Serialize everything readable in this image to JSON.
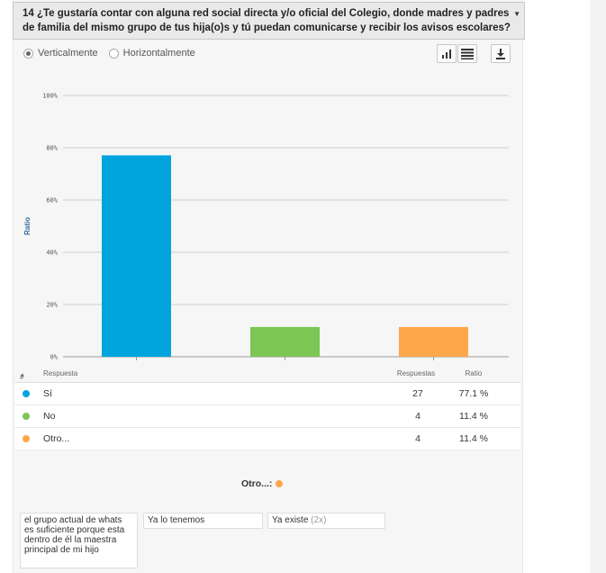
{
  "question": {
    "title_line1": "14 ¿Te gustaría contar con alguna red social directa y/o oficial del Colegio, donde madres y padres",
    "title_line2": "de familia del mismo grupo de tus hija(o)s y tú puedan comunicarse y recibir los avisos escolares?"
  },
  "orientation": {
    "vertical_label": "Verticalmente",
    "horizontal_label": "Horizontalmente",
    "selected": "vertical"
  },
  "toolbar": {
    "icons": [
      "bar-chart-icon",
      "table-icon",
      "download-icon"
    ]
  },
  "chart_data": {
    "type": "bar",
    "categories": [
      "Sí",
      "No",
      "Otro..."
    ],
    "values": [
      77.1,
      11.4,
      11.4
    ],
    "colors": [
      "#00a4dd",
      "#7cc653",
      "#fda74a"
    ],
    "ylabel": "Ratio",
    "ylim": [
      0,
      100
    ],
    "yticks": [
      "0%",
      "20%",
      "40%",
      "60%",
      "80%",
      "100%"
    ],
    "grid": true
  },
  "table": {
    "headers": {
      "num": "#",
      "response": "Respuesta",
      "count": "Respuestas",
      "ratio": "Ratio"
    },
    "rows": [
      {
        "label": "Sí",
        "count": "27",
        "ratio": "77.1 %",
        "color": "#00a4dd"
      },
      {
        "label": "No",
        "count": "4",
        "ratio": "11.4 %",
        "color": "#7cc653"
      },
      {
        "label": "Otro...",
        "count": "4",
        "ratio": "11.4 %",
        "color": "#fda74a"
      }
    ]
  },
  "other": {
    "title": "Otro...:",
    "answers": [
      {
        "text": "el grupo actual de whats es suficiente porque esta dentro de él la maestra principal de mi hijo",
        "count": ""
      },
      {
        "text": "Ya lo tenemos",
        "count": ""
      },
      {
        "text": "Ya existe",
        "count": "(2x)"
      }
    ]
  }
}
